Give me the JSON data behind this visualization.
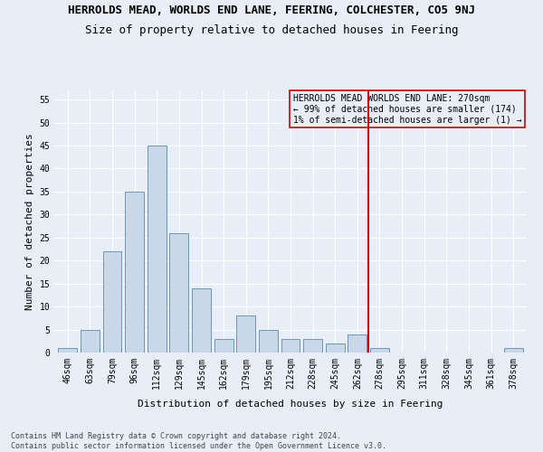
{
  "title": "HERROLDS MEAD, WORLDS END LANE, FEERING, COLCHESTER, CO5 9NJ",
  "subtitle": "Size of property relative to detached houses in Feering",
  "xlabel": "Distribution of detached houses by size in Feering",
  "ylabel": "Number of detached properties",
  "footnote": "Contains HM Land Registry data © Crown copyright and database right 2024.\nContains public sector information licensed under the Open Government Licence v3.0.",
  "categories": [
    "46sqm",
    "63sqm",
    "79sqm",
    "96sqm",
    "112sqm",
    "129sqm",
    "145sqm",
    "162sqm",
    "179sqm",
    "195sqm",
    "212sqm",
    "228sqm",
    "245sqm",
    "262sqm",
    "278sqm",
    "295sqm",
    "311sqm",
    "328sqm",
    "345sqm",
    "361sqm",
    "378sqm"
  ],
  "values": [
    1,
    5,
    22,
    35,
    45,
    26,
    14,
    3,
    8,
    5,
    3,
    3,
    2,
    4,
    1,
    0,
    0,
    0,
    0,
    0,
    1
  ],
  "bar_color": "#c8d8e8",
  "bar_edge_color": "#5a8aaa",
  "ref_line_color": "#cc0000",
  "legend_text_line1": "HERROLDS MEAD WORLDS END LANE: 270sqm",
  "legend_text_line2": "← 99% of detached houses are smaller (174)",
  "legend_text_line3": "1% of semi-detached houses are larger (1) →",
  "ylim": [
    0,
    57
  ],
  "yticks": [
    0,
    5,
    10,
    15,
    20,
    25,
    30,
    35,
    40,
    45,
    50,
    55
  ],
  "bg_color": "#e8eef8",
  "grid_color": "#ffffff",
  "title_fontsize": 9,
  "subtitle_fontsize": 9,
  "axis_label_fontsize": 8,
  "tick_fontsize": 7,
  "footnote_fontsize": 6,
  "legend_fontsize": 7
}
